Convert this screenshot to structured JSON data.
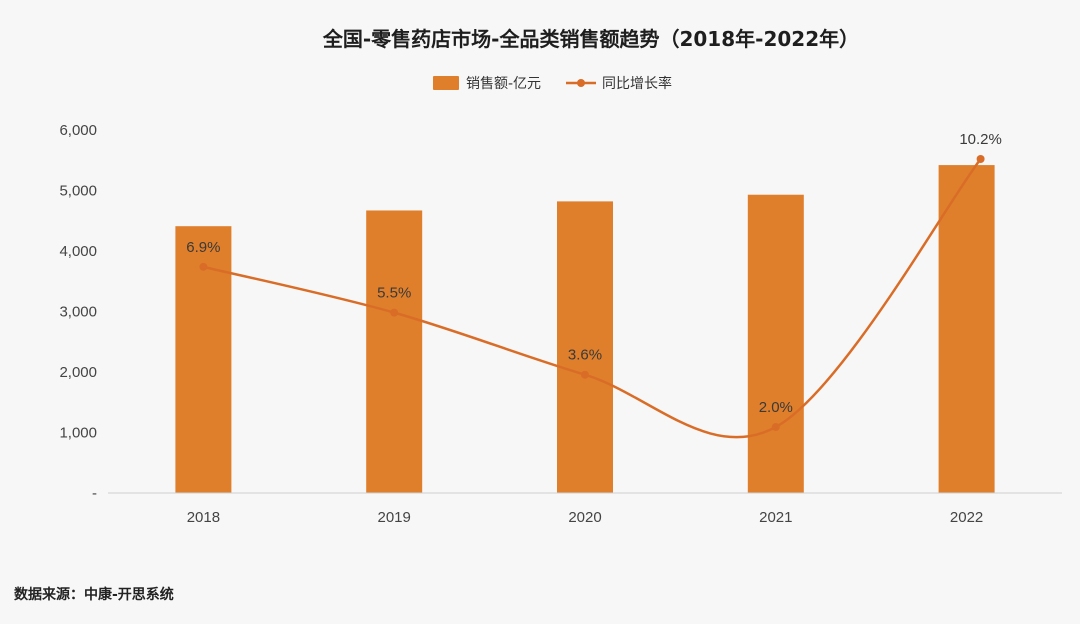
{
  "chart_data": {
    "type": "bar",
    "title": "全国-零售药店市场-全品类销售额趋势（2018年-2022年）",
    "categories": [
      "2018",
      "2019",
      "2020",
      "2021",
      "2022"
    ],
    "y_ticks": [
      "-",
      "1,000",
      "2,000",
      "3,000",
      "4,000",
      "5,000",
      "6,000"
    ],
    "ylim": [
      0,
      6000
    ],
    "grid": false,
    "legend_position": "top-center",
    "series": [
      {
        "name": "销售额-亿元",
        "type": "bar",
        "color": "#df7f2b",
        "values": [
          4410,
          4670,
          4820,
          4930,
          5420
        ]
      },
      {
        "name": "同比增长率",
        "type": "line",
        "axis": "secondary",
        "smooth": true,
        "color": "#d96d27",
        "values": [
          6.9,
          5.5,
          3.6,
          2.0,
          10.2
        ],
        "labels": [
          "6.9%",
          "5.5%",
          "3.6%",
          "2.0%",
          "10.2%"
        ]
      }
    ]
  },
  "source": "数据来源：中康-开思系统"
}
